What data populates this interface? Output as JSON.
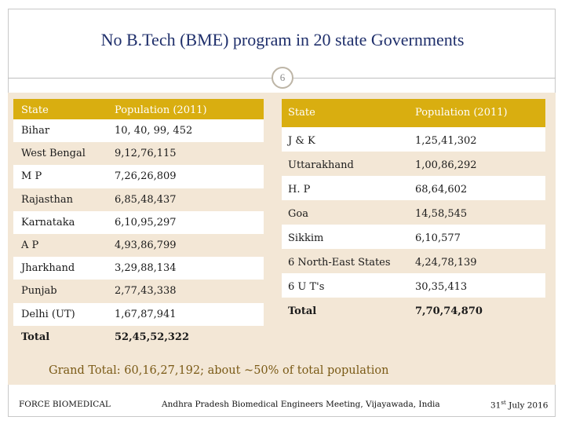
{
  "slide": {
    "title": "No B.Tech (BME) program in 20 state Governments",
    "page_number": "6"
  },
  "left_table": {
    "headers": [
      "State",
      "Population (2011)"
    ],
    "rows": [
      [
        "Bihar",
        "10, 40, 99, 452"
      ],
      [
        "West Bengal",
        "9,12,76,115"
      ],
      [
        "M P",
        "7,26,26,809"
      ],
      [
        "Rajasthan",
        "6,85,48,437"
      ],
      [
        "Karnataka",
        "6,10,95,297"
      ],
      [
        "A P",
        "4,93,86,799"
      ],
      [
        "Jharkhand",
        "3,29,88,134"
      ],
      [
        "Punjab",
        "2,77,43,338"
      ],
      [
        "Delhi (UT)",
        "1,67,87,941"
      ]
    ],
    "total": [
      "Total",
      "52,45,52,322"
    ]
  },
  "right_table": {
    "headers": [
      "State",
      "Population (2011)"
    ],
    "rows": [
      [
        "J & K",
        "1,25,41,302"
      ],
      [
        "Uttarakhand",
        "1,00,86,292"
      ],
      [
        "H. P",
        "68,64,602"
      ],
      [
        "Goa",
        "14,58,545"
      ],
      [
        "Sikkim",
        "6,10,577"
      ],
      [
        "6 North-East States",
        "4,24,78,139"
      ],
      [
        "6 U T's",
        "30,35,413"
      ]
    ],
    "total": [
      "Total",
      "7,70,74,870"
    ]
  },
  "summary": {
    "grand_total": "Grand Total: 60,16,27,192; about ~50% of total population"
  },
  "footer": {
    "left": "FORCE BIOMEDICAL",
    "center": "Andhra Pradesh Biomedical Engineers Meeting, Vijayawada, India",
    "date_day": "31",
    "date_suffix": "st",
    "date_rest": " July 2016"
  },
  "colors": {
    "header_fill": "#d9ae10",
    "content_bg": "#f3e7d6",
    "title_color": "#1f2f6b",
    "grand_total_color": "#7a5a16"
  }
}
